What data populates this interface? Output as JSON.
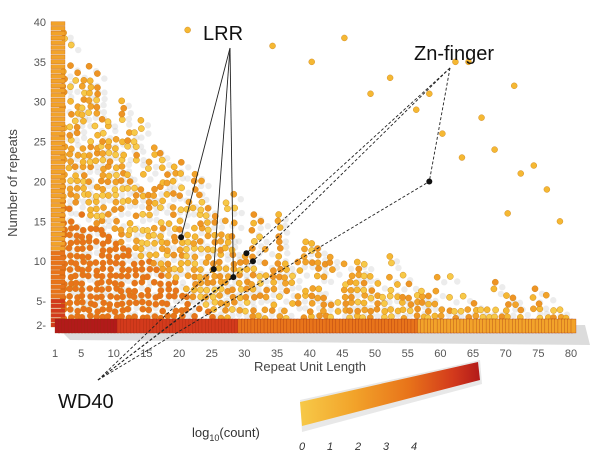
{
  "chart_data": {
    "type": "scatter",
    "title": "",
    "xlabel": "Repeat Unit Length",
    "ylabel": "Number of repeats",
    "xlim": [
      1,
      80
    ],
    "ylim": [
      2,
      40
    ],
    "x_ticks": [
      "1",
      "5",
      "10",
      "15",
      "20",
      "25",
      "30",
      "35",
      "40",
      "45",
      "50",
      "55",
      "60",
      "65",
      "70",
      "75",
      "80"
    ],
    "y_ticks": [
      "2-",
      "5-",
      "10",
      "15",
      "20",
      "25",
      "30",
      "35",
      "40"
    ],
    "colorbar": {
      "label": "log10(count)",
      "label_main": "log",
      "label_sub": "10",
      "label_tail": "(count)",
      "ticks": [
        "0",
        "1",
        "2",
        "3",
        "4"
      ],
      "colors": [
        "#f7c948",
        "#f2a32a",
        "#e8741a",
        "#d33a1c",
        "#b21a1a"
      ]
    },
    "annotations": [
      {
        "label": "LRR",
        "points": [
          [
            20,
            13
          ],
          [
            25,
            9
          ],
          [
            28,
            8
          ]
        ]
      },
      {
        "label": "Zn-finger",
        "points": [
          [
            31,
            10
          ],
          [
            30,
            11
          ],
          [
            58,
            20
          ]
        ]
      },
      {
        "label": "WD40",
        "points": [
          [
            25,
            9
          ],
          [
            28,
            8
          ],
          [
            31,
            10
          ],
          [
            58,
            20
          ]
        ]
      }
    ],
    "notable_points": [
      [
        20,
        13
      ],
      [
        25,
        9
      ],
      [
        28,
        8
      ],
      [
        30,
        11
      ],
      [
        31,
        10
      ],
      [
        58,
        20
      ]
    ],
    "outliers": [
      [
        21,
        39
      ],
      [
        34,
        37
      ],
      [
        45,
        38
      ],
      [
        62,
        35
      ],
      [
        64,
        35
      ],
      [
        71,
        32
      ],
      [
        56,
        29
      ],
      [
        68,
        24
      ],
      [
        72,
        21
      ],
      [
        76,
        19
      ],
      [
        63,
        23
      ],
      [
        60,
        26
      ],
      [
        49,
        31
      ],
      [
        52,
        33
      ],
      [
        40,
        35
      ],
      [
        58,
        31
      ],
      [
        66,
        28
      ],
      [
        74,
        22
      ],
      [
        78,
        15
      ],
      [
        70,
        16
      ]
    ]
  }
}
